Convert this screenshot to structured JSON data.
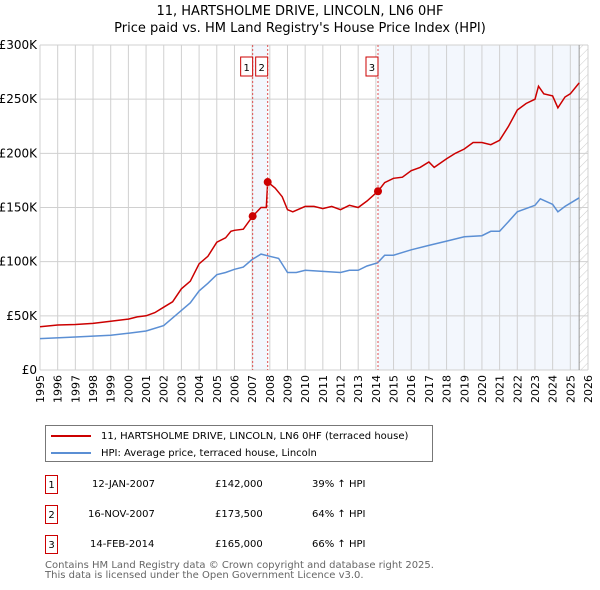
{
  "title": "11, HARTSHOLME DRIVE, LINCOLN, LN6 0HF",
  "subtitle": "Price paid vs. HM Land Registry's House Price Index (HPI)",
  "chart_data": {
    "type": "line",
    "title": "11, HARTSHOLME DRIVE, LINCOLN, LN6 0HF",
    "subtitle": "Price paid vs. HM Land Registry's House Price Index (HPI)",
    "xlim": [
      1995,
      2026
    ],
    "ylim": [
      0,
      300000
    ],
    "x_ticks": [
      "1995",
      "1996",
      "1997",
      "1998",
      "1999",
      "2000",
      "2001",
      "2002",
      "2003",
      "2004",
      "2005",
      "2006",
      "2007",
      "2008",
      "2009",
      "2010",
      "2011",
      "2012",
      "2013",
      "2014",
      "2015",
      "2016",
      "2017",
      "2018",
      "2019",
      "2020",
      "2021",
      "2022",
      "2023",
      "2024",
      "2025",
      "2026"
    ],
    "y_ticks": [
      {
        "v": 0,
        "label": "£0"
      },
      {
        "v": 50000,
        "label": "£50K"
      },
      {
        "v": 100000,
        "label": "£100K"
      },
      {
        "v": 150000,
        "label": "£150K"
      },
      {
        "v": 200000,
        "label": "£200K"
      },
      {
        "v": 250000,
        "label": "£250K"
      },
      {
        "v": 300000,
        "label": "£300K"
      }
    ],
    "grid": true,
    "legend_placement": "below",
    "series": [
      {
        "name": "11, HARTSHOLME DRIVE, LINCOLN, LN6 0HF (terraced house)",
        "color": "#cc0000",
        "points": [
          [
            1995,
            40
          ],
          [
            1996,
            41.5
          ],
          [
            1997,
            42
          ],
          [
            1998,
            43
          ],
          [
            1999,
            45
          ],
          [
            2000,
            47
          ],
          [
            2000.5,
            49
          ],
          [
            2001,
            50
          ],
          [
            2001.5,
            53
          ],
          [
            2002,
            58
          ],
          [
            2002.5,
            63
          ],
          [
            2003,
            75
          ],
          [
            2003.5,
            82
          ],
          [
            2004,
            98
          ],
          [
            2004.5,
            105
          ],
          [
            2005,
            118
          ],
          [
            2005.5,
            122
          ],
          [
            2005.8,
            128
          ],
          [
            2006,
            129
          ],
          [
            2006.5,
            130
          ],
          [
            2007.03,
            142
          ],
          [
            2007.5,
            150
          ],
          [
            2007.8,
            150
          ],
          [
            2007.88,
            173.5
          ],
          [
            2008.3,
            168
          ],
          [
            2008.7,
            160
          ],
          [
            2009,
            148
          ],
          [
            2009.3,
            146
          ],
          [
            2010,
            151
          ],
          [
            2010.5,
            151
          ],
          [
            2011,
            149
          ],
          [
            2011.5,
            151
          ],
          [
            2012,
            148
          ],
          [
            2012.5,
            152
          ],
          [
            2013,
            150
          ],
          [
            2013.5,
            156
          ],
          [
            2014.12,
            165
          ],
          [
            2014.5,
            173
          ],
          [
            2015,
            177
          ],
          [
            2015.5,
            178
          ],
          [
            2016,
            184
          ],
          [
            2016.5,
            187
          ],
          [
            2017,
            192
          ],
          [
            2017.3,
            187
          ],
          [
            2018,
            195
          ],
          [
            2018.5,
            200
          ],
          [
            2019,
            204
          ],
          [
            2019.5,
            210
          ],
          [
            2020,
            210
          ],
          [
            2020.5,
            208
          ],
          [
            2021,
            212
          ],
          [
            2021.5,
            225
          ],
          [
            2022,
            240
          ],
          [
            2022.5,
            246
          ],
          [
            2023,
            250
          ],
          [
            2023.2,
            262
          ],
          [
            2023.5,
            255
          ],
          [
            2024,
            253
          ],
          [
            2024.3,
            242
          ],
          [
            2024.7,
            252
          ],
          [
            2025,
            255
          ],
          [
            2025.5,
            265
          ]
        ]
      },
      {
        "name": "HPI: Average price, terraced house, Lincoln",
        "color": "#5b8fd4",
        "points": [
          [
            1995,
            29
          ],
          [
            1997,
            30.5
          ],
          [
            1999,
            32
          ],
          [
            2000,
            34
          ],
          [
            2001,
            36
          ],
          [
            2002,
            41
          ],
          [
            2003,
            55
          ],
          [
            2003.5,
            62
          ],
          [
            2004,
            73
          ],
          [
            2004.5,
            80
          ],
          [
            2005,
            88
          ],
          [
            2005.5,
            90
          ],
          [
            2006,
            93
          ],
          [
            2006.5,
            95
          ],
          [
            2007,
            102
          ],
          [
            2007.5,
            107
          ],
          [
            2008,
            105
          ],
          [
            2008.5,
            103
          ],
          [
            2009,
            90
          ],
          [
            2009.5,
            90
          ],
          [
            2010,
            92
          ],
          [
            2011,
            91
          ],
          [
            2012,
            90
          ],
          [
            2012.5,
            92
          ],
          [
            2013,
            92
          ],
          [
            2013.5,
            96
          ],
          [
            2014.1,
            99
          ],
          [
            2014.5,
            106
          ],
          [
            2015,
            106
          ],
          [
            2016,
            111
          ],
          [
            2017,
            115
          ],
          [
            2018,
            119
          ],
          [
            2019,
            123
          ],
          [
            2020,
            124
          ],
          [
            2020.5,
            128
          ],
          [
            2021,
            128
          ],
          [
            2021.5,
            137
          ],
          [
            2022,
            146
          ],
          [
            2022.5,
            149
          ],
          [
            2023,
            152
          ],
          [
            2023.3,
            158
          ],
          [
            2024,
            153
          ],
          [
            2024.3,
            146
          ],
          [
            2024.7,
            151
          ],
          [
            2025,
            154
          ],
          [
            2025.5,
            159
          ]
        ]
      }
    ],
    "units_note": "series point values in £ thousands",
    "sales": [
      {
        "label": "1",
        "x": 2007.03,
        "y": 142
      },
      {
        "label": "2",
        "x": 2007.88,
        "y": 173.5
      },
      {
        "label": "3",
        "x": 2014.12,
        "y": 165
      }
    ],
    "shaded_ranges": [
      [
        2007.03,
        2007.88
      ],
      [
        2014.12,
        2025.5
      ]
    ],
    "forecast_from": 2025.5
  },
  "legend": {
    "property": "11, HARTSHOLME DRIVE, LINCOLN, LN6 0HF (terraced house)",
    "hpi": "HPI: Average price, terraced house, Lincoln"
  },
  "transactions": [
    {
      "num": "1",
      "date": "12-JAN-2007",
      "price": "£142,000",
      "hpi": "39% ↑ HPI"
    },
    {
      "num": "2",
      "date": "16-NOV-2007",
      "price": "£173,500",
      "hpi": "64% ↑ HPI"
    },
    {
      "num": "3",
      "date": "14-FEB-2014",
      "price": "£165,000",
      "hpi": "66% ↑ HPI"
    }
  ],
  "footer": {
    "line1": "Contains HM Land Registry data © Crown copyright and database right 2025.",
    "line2": "This data is licensed under the Open Government Licence v3.0."
  }
}
